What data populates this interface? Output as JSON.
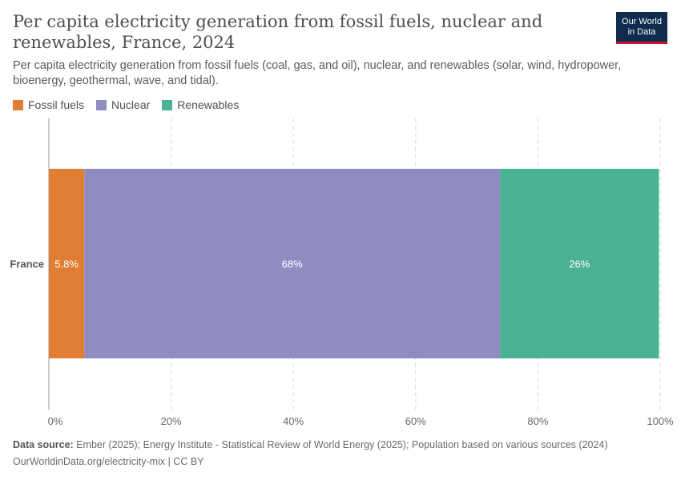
{
  "title": "Per capita electricity generation from fossil fuels, nuclear and renewables, France, 2024",
  "subtitle": "Per capita electricity generation from fossil fuels (coal, gas, and oil), nuclear, and renewables (solar, wind, hydropower, bioenergy, geothermal, wave, and tidal).",
  "logo": {
    "line1": "Our World",
    "line2": "in Data"
  },
  "footer": {
    "source_label": "Data source:",
    "source_text": "Ember (2025); Energy Institute - Statistical Review of World Energy (2025); Population based on various sources (2024)",
    "url_text": "OurWorldinData.org/electricity-mix | CC BY"
  },
  "chart_data": {
    "type": "bar",
    "orientation": "horizontal",
    "stacked": true,
    "categories": [
      "France"
    ],
    "series": [
      {
        "name": "Fossil fuels",
        "values": [
          5.8
        ],
        "label": "5.8%",
        "color": "#e07f34"
      },
      {
        "name": "Nuclear",
        "values": [
          68
        ],
        "label": "68%",
        "color": "#8f8cc2"
      },
      {
        "name": "Renewables",
        "values": [
          26
        ],
        "label": "26%",
        "color": "#4bb393"
      }
    ],
    "xlim": [
      0,
      100
    ],
    "xticks": [
      0,
      20,
      40,
      60,
      80,
      100
    ],
    "xtick_labels": [
      "0%",
      "20%",
      "40%",
      "60%",
      "80%",
      "100%"
    ],
    "grid": "vertical dashed",
    "legend_position": "top-left"
  }
}
